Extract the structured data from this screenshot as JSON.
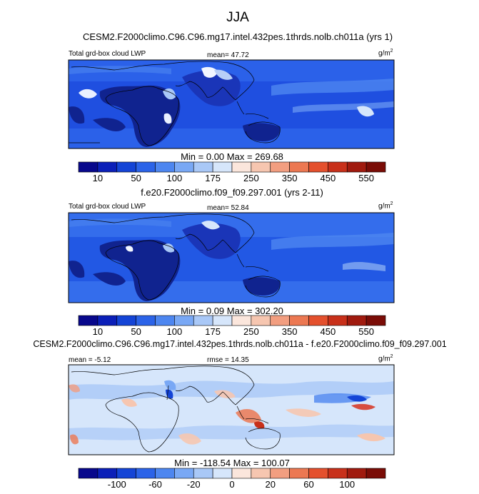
{
  "season": "JJA",
  "colors": {
    "scale": [
      "#08088c",
      "#0b1fb8",
      "#1444d6",
      "#2b63e8",
      "#4d86f0",
      "#79a8f5",
      "#a9c8f7",
      "#d6e6fb",
      "#fbe6dc",
      "#f6c6b0",
      "#f29e80",
      "#ec7852",
      "#e4502d",
      "#c8301a",
      "#a01a0e",
      "#7a0c06"
    ],
    "land": "#1a2fb0"
  },
  "chart_data": [
    {
      "type": "heatmap",
      "title": "CESM2.F2000climo.C96.C96.mg17.intel.432pes.1thrds.nolb.ch011a (yrs 1)",
      "variable_label": "Total grd-box cloud LWP",
      "stat_text": "mean=  47.72",
      "mean": 47.72,
      "units": "g/m",
      "units_sup": "2",
      "min_max_text": "Min =   0.00 Max = 269.68",
      "min": 0.0,
      "max": 269.68,
      "colorbar_ticks": [
        "10",
        "50",
        "100",
        "175",
        "250",
        "350",
        "450",
        "550"
      ]
    },
    {
      "type": "heatmap",
      "title": "f.e20.F2000climo.f09_f09.297.001 (yrs 2-11)",
      "variable_label": "Total grd-box cloud LWP",
      "stat_text": "mean=  52.84",
      "mean": 52.84,
      "units": "g/m",
      "units_sup": "2",
      "min_max_text": "Min =   0.09 Max = 302.20",
      "min": 0.09,
      "max": 302.2,
      "colorbar_ticks": [
        "10",
        "50",
        "100",
        "175",
        "250",
        "350",
        "450",
        "550"
      ]
    },
    {
      "type": "heatmap",
      "title": "CESM2.F2000climo.C96.C96.mg17.intel.432pes.1thrds.nolb.ch011a - f.e20.F2000climo.f09_f09.297.001",
      "mean_text": "mean =  -5.12",
      "mean": -5.12,
      "rmse_text": "rmse =  14.35",
      "rmse": 14.35,
      "units": "g/m",
      "units_sup": "2",
      "min_max_text": "Min = -118.54 Max = 100.07",
      "min": -118.54,
      "max": 100.07,
      "colorbar_ticks": [
        "-100",
        "-60",
        "-20",
        "0",
        "20",
        "60",
        "100"
      ]
    }
  ]
}
